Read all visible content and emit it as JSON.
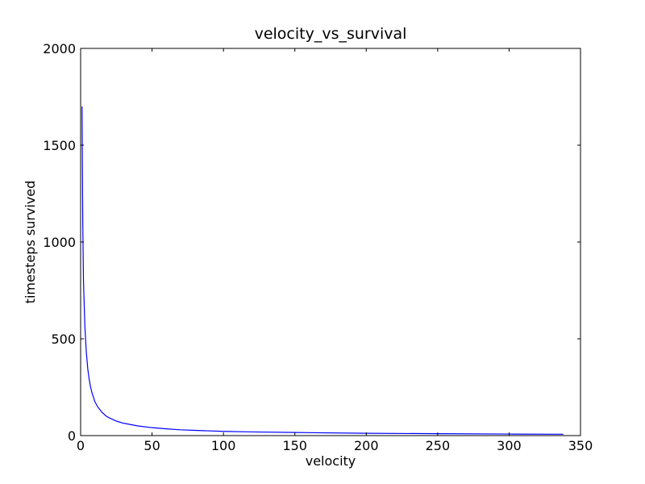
{
  "chart_data": {
    "type": "line",
    "title": "velocity_vs_survival",
    "xlabel": "velocity",
    "ylabel": "timesteps survived",
    "xlim": [
      0,
      350
    ],
    "ylim": [
      0,
      2000
    ],
    "xticks": [
      0,
      50,
      100,
      150,
      200,
      250,
      300,
      350
    ],
    "yticks": [
      0,
      500,
      1000,
      1500,
      2000
    ],
    "grid": false,
    "legend": "none",
    "series": [
      {
        "color": "#0000ff",
        "x": [
          1,
          1.5,
          2,
          3,
          4,
          5,
          6,
          7,
          8,
          10,
          12,
          15,
          18,
          20,
          25,
          30,
          40,
          50,
          60,
          70,
          80,
          100,
          120,
          150,
          200,
          250,
          300,
          338
        ],
        "y": [
          1700,
          1100,
          800,
          560,
          430,
          345,
          290,
          250,
          220,
          175,
          148,
          120,
          100,
          92,
          75,
          64,
          50,
          41,
          35,
          30,
          27,
          22,
          19,
          16,
          12,
          10,
          8,
          7
        ]
      }
    ]
  }
}
